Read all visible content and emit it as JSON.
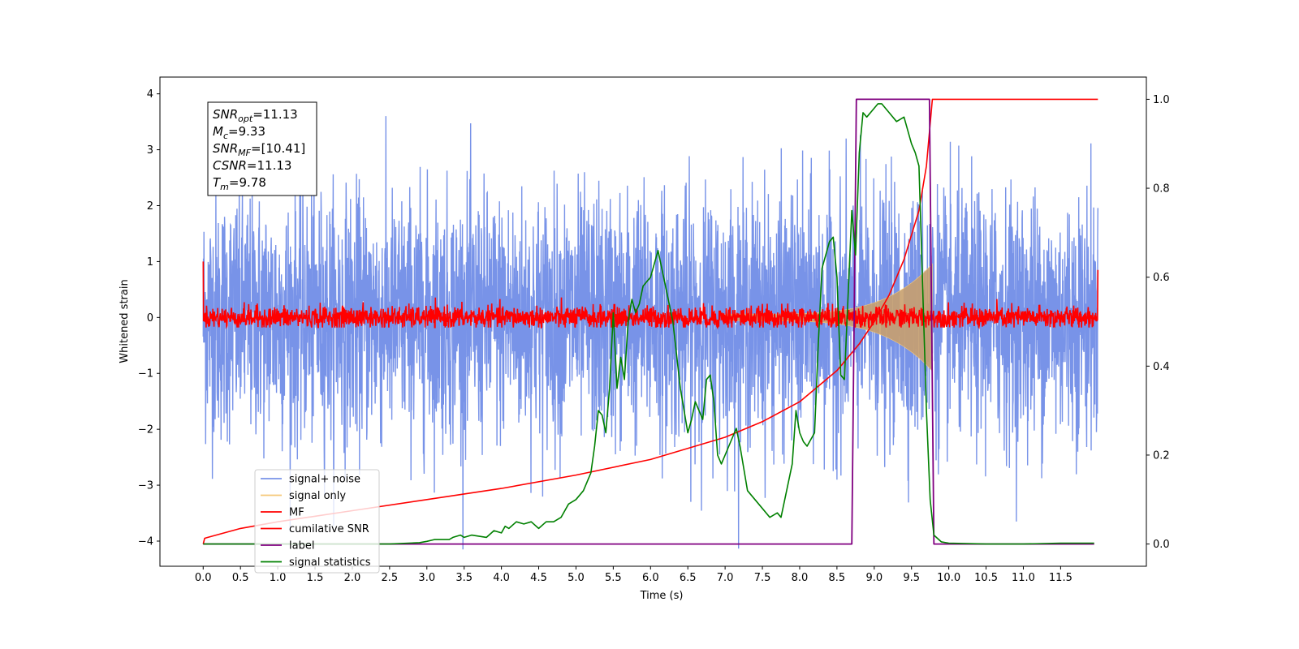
{
  "chart_data": {
    "type": "line",
    "xlabel": "Time (s)",
    "ylabel": "Whitened strain",
    "xlim": [
      -0.58,
      12.65
    ],
    "ylim_left": [
      -4.45,
      4.3
    ],
    "ylim_right": [
      -0.05,
      1.05
    ],
    "xticks": [
      "0.0",
      "0.5",
      "1.0",
      "1.5",
      "2.0",
      "2.5",
      "3.0",
      "3.5",
      "4.0",
      "4.5",
      "5.0",
      "5.5",
      "6.0",
      "6.5",
      "7.0",
      "7.5",
      "8.0",
      "8.5",
      "9.0",
      "9.5",
      "10.0",
      "10.5",
      "11.0",
      "11.5"
    ],
    "yticks_left": [
      "4",
      "3",
      "2",
      "1",
      "0",
      "−1",
      "−2",
      "−3",
      "−4"
    ],
    "yticks_right": [
      "1.0",
      "0.8",
      "0.6",
      "0.4",
      "0.2",
      "0.0"
    ],
    "colors": {
      "signal_noise": "#7893e8",
      "signal_only": "#f5c878",
      "envelope_fill": "#c8a06e",
      "mf": "#ff0000",
      "cumulative_snr": "#ff0000",
      "label": "#800080",
      "signal_statistics": "#008000"
    },
    "info_box": {
      "snr_opt": {
        "sym": "SNR",
        "sub": "opt",
        "val": "=11.13"
      },
      "mc": {
        "sym": "M",
        "sub": "c",
        "val": "=9.33"
      },
      "snr_mf": {
        "sym": "SNR",
        "sub": "MF",
        "val": "=[10.41]"
      },
      "csnr": {
        "sym": "CSNR",
        "sub": "",
        "val": "=11.13"
      },
      "tm": {
        "sym": "T",
        "sub": "m",
        "val": "=9.78"
      }
    },
    "legend": {
      "placement": "lower-left",
      "items": [
        "signal+ noise",
        "signal only",
        "MF",
        "cumilative SNR",
        "label",
        "signal statistics"
      ]
    },
    "series": [
      {
        "name": "signal+ noise",
        "axis": "left",
        "description_type": "noise",
        "x_range": [
          0.0,
          12.0
        ],
        "spread": 1.1
      },
      {
        "name": "signal only",
        "axis": "left",
        "chirp_end": 9.78,
        "max_amplitude": 0.9
      },
      {
        "name": "MF",
        "axis": "left",
        "x_range": [
          0.0,
          12.0
        ],
        "spread": 0.1,
        "endpoints": [
          1.0,
          0.85
        ]
      },
      {
        "name": "cumilative SNR",
        "axis": "right",
        "x": [
          0.0,
          0.02,
          0.5,
          1.0,
          2.0,
          3.0,
          4.0,
          5.0,
          6.0,
          7.0,
          7.5,
          8.0,
          8.5,
          8.8,
          9.0,
          9.2,
          9.4,
          9.6,
          9.7,
          9.78,
          12.0
        ],
        "y": [
          0.0,
          0.013,
          0.035,
          0.05,
          0.075,
          0.1,
          0.125,
          0.155,
          0.19,
          0.24,
          0.275,
          0.32,
          0.39,
          0.45,
          0.5,
          0.56,
          0.64,
          0.75,
          0.85,
          1.0,
          1.0
        ]
      },
      {
        "name": "label",
        "axis": "right",
        "x": [
          0.0,
          8.7,
          8.76,
          9.74,
          9.8,
          11.95
        ],
        "y": [
          0.0,
          0.0,
          1.0,
          1.0,
          0.0,
          0.0
        ]
      },
      {
        "name": "signal statistics",
        "axis": "right",
        "x": [
          0.0,
          0.5,
          1.0,
          2.0,
          2.5,
          2.9,
          3.0,
          3.1,
          3.3,
          3.35,
          3.45,
          3.5,
          3.6,
          3.8,
          3.9,
          4.0,
          4.05,
          4.1,
          4.2,
          4.3,
          4.4,
          4.5,
          4.6,
          4.7,
          4.8,
          4.9,
          5.0,
          5.1,
          5.2,
          5.25,
          5.3,
          5.35,
          5.4,
          5.45,
          5.5,
          5.55,
          5.6,
          5.65,
          5.7,
          5.75,
          5.8,
          5.85,
          5.9,
          6.0,
          6.1,
          6.15,
          6.2,
          6.3,
          6.4,
          6.5,
          6.55,
          6.6,
          6.7,
          6.75,
          6.8,
          6.85,
          6.9,
          6.95,
          7.0,
          7.1,
          7.15,
          7.2,
          7.3,
          7.4,
          7.5,
          7.6,
          7.7,
          7.75,
          7.8,
          7.9,
          7.95,
          8.0,
          8.05,
          8.1,
          8.2,
          8.25,
          8.3,
          8.4,
          8.45,
          8.5,
          8.55,
          8.6,
          8.7,
          8.75,
          8.8,
          8.85,
          8.9,
          9.0,
          9.05,
          9.1,
          9.2,
          9.3,
          9.4,
          9.5,
          9.55,
          9.6,
          9.7,
          9.75,
          9.8,
          9.9,
          10.0,
          10.5,
          11.0,
          11.5,
          11.95
        ],
        "y": [
          0.0,
          0.0,
          0.0,
          0.0,
          0.0,
          0.003,
          0.006,
          0.01,
          0.01,
          0.015,
          0.02,
          0.015,
          0.02,
          0.015,
          0.03,
          0.025,
          0.04,
          0.035,
          0.05,
          0.045,
          0.05,
          0.035,
          0.05,
          0.05,
          0.06,
          0.09,
          0.1,
          0.12,
          0.16,
          0.22,
          0.3,
          0.29,
          0.25,
          0.35,
          0.52,
          0.35,
          0.42,
          0.37,
          0.5,
          0.55,
          0.52,
          0.54,
          0.58,
          0.6,
          0.66,
          0.62,
          0.58,
          0.5,
          0.35,
          0.25,
          0.28,
          0.32,
          0.28,
          0.37,
          0.38,
          0.32,
          0.2,
          0.18,
          0.2,
          0.24,
          0.26,
          0.22,
          0.12,
          0.1,
          0.08,
          0.06,
          0.07,
          0.06,
          0.1,
          0.18,
          0.3,
          0.25,
          0.23,
          0.22,
          0.25,
          0.45,
          0.62,
          0.68,
          0.69,
          0.6,
          0.38,
          0.37,
          0.75,
          0.65,
          0.88,
          0.97,
          0.96,
          0.98,
          0.99,
          0.99,
          0.97,
          0.95,
          0.96,
          0.9,
          0.88,
          0.85,
          0.3,
          0.1,
          0.02,
          0.005,
          0.002,
          0.0,
          0.0,
          0.002,
          0.002
        ]
      }
    ]
  }
}
